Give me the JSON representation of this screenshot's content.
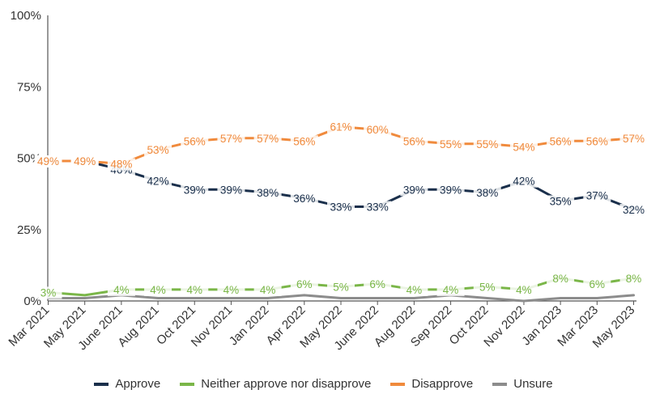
{
  "chart_data": {
    "type": "line",
    "categories": [
      "Mar 2021",
      "May 2021",
      "June 2021",
      "Aug 2021",
      "Oct 2021",
      "Nov 2021",
      "Jan 2022",
      "Apr 2022",
      "May 2022",
      "June 2022",
      "Aug 2022",
      "Sep 2022",
      "Oct 2022",
      "Nov 2022",
      "Jan 2023",
      "Mar 2023",
      "May 2023"
    ],
    "ylim": [
      0,
      100
    ],
    "yticks": [
      "0%",
      "25%",
      "50%",
      "75%",
      "100%"
    ],
    "grid": false,
    "legend_position": "bottom",
    "series": [
      {
        "key": "approve",
        "name": "Approve",
        "color": "#1a2f4b",
        "values": [
          49,
          49,
          46,
          42,
          39,
          39,
          38,
          36,
          33,
          33,
          39,
          39,
          38,
          42,
          35,
          37,
          32
        ],
        "labels": [
          "49%",
          "49%",
          "46%",
          "42%",
          "39%",
          "39%",
          "38%",
          "36%",
          "33%",
          "33%",
          "39%",
          "39%",
          "38%",
          "42%",
          "35%",
          "37%",
          "32%"
        ]
      },
      {
        "key": "neither",
        "name": "Neither approve nor disapprove",
        "color": "#7ab648",
        "values": [
          3,
          2,
          4,
          4,
          4,
          4,
          4,
          6,
          5,
          6,
          4,
          4,
          5,
          4,
          8,
          6,
          8
        ],
        "labels": [
          "3%",
          "",
          "4%",
          "4%",
          "4%",
          "4%",
          "4%",
          "6%",
          "5%",
          "6%",
          "4%",
          "4%",
          "5%",
          "4%",
          "8%",
          "6%",
          "8%"
        ]
      },
      {
        "key": "disapprove",
        "name": "Disapprove",
        "color": "#f08a3c",
        "values": [
          49,
          49,
          48,
          53,
          56,
          57,
          57,
          56,
          61,
          60,
          56,
          55,
          55,
          54,
          56,
          56,
          57
        ],
        "labels": [
          "49%",
          "49%",
          "48%",
          "53%",
          "56%",
          "57%",
          "57%",
          "56%",
          "61%",
          "60%",
          "56%",
          "55%",
          "55%",
          "54%",
          "56%",
          "56%",
          "57%"
        ]
      },
      {
        "key": "unsure",
        "name": "Unsure",
        "color": "#8c8c8c",
        "values": [
          1,
          1,
          2,
          1,
          1,
          1,
          1,
          2,
          1,
          1,
          1,
          2,
          1,
          0,
          1,
          1,
          2
        ],
        "labels": []
      }
    ]
  }
}
